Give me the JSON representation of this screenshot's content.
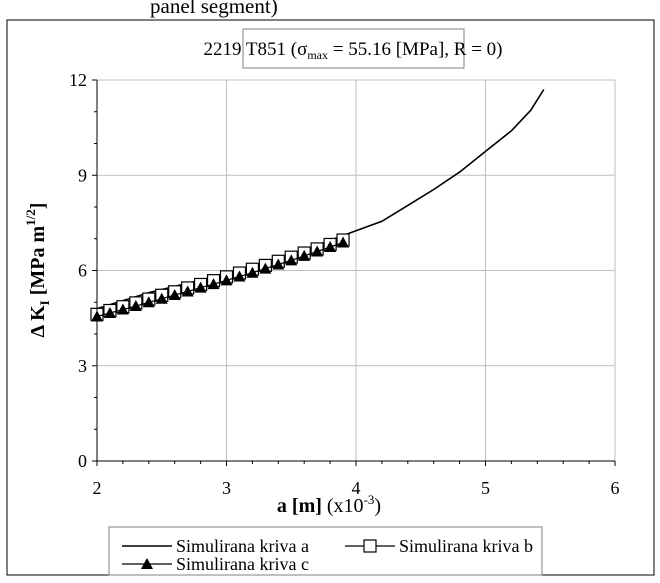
{
  "top_cut_text": "panel segment)",
  "chart_data": {
    "type": "line",
    "title": {
      "prefix": "2219 T851 (",
      "sigma": "σ",
      "sigma_sub": "max",
      "suffix": " = 55.16 [MPa], R = 0)"
    },
    "xlabel": {
      "main": "a [m]",
      "unit_prefix": " (x10",
      "unit_sup": "-3",
      "unit_suffix": ")"
    },
    "ylabel": {
      "delta": "Δ",
      "k": "K",
      "k_sub": "I",
      "mid": " [MPa m",
      "sup": "1/2",
      "end": "]"
    },
    "xlim": [
      2,
      6
    ],
    "ylim": [
      0,
      12
    ],
    "xticks": [
      "2",
      "3",
      "4",
      "5",
      "6"
    ],
    "yticks": [
      "0",
      "3",
      "6",
      "9",
      "12"
    ],
    "grid": true,
    "legend_position": "bottom",
    "series": [
      {
        "name": "Simulirana kriva a",
        "marker": "none",
        "x": [
          2.0,
          2.2,
          2.4,
          2.6,
          2.8,
          3.0,
          3.2,
          3.4,
          3.6,
          3.8,
          4.0,
          4.2,
          4.4,
          4.6,
          4.8,
          5.0,
          5.2,
          5.35,
          5.45
        ],
        "y": [
          4.8,
          5.05,
          5.3,
          5.5,
          5.7,
          5.9,
          6.15,
          6.4,
          6.65,
          6.95,
          7.25,
          7.55,
          8.05,
          8.55,
          9.1,
          9.75,
          10.4,
          11.05,
          11.7
        ]
      },
      {
        "name": "Simulirana kriva b",
        "marker": "square",
        "x": [
          2.0,
          2.1,
          2.2,
          2.3,
          2.4,
          2.5,
          2.6,
          2.7,
          2.8,
          2.9,
          3.0,
          3.1,
          3.2,
          3.3,
          3.4,
          3.5,
          3.6,
          3.7,
          3.8,
          3.9
        ],
        "y": [
          4.62,
          4.74,
          4.86,
          4.98,
          5.1,
          5.22,
          5.33,
          5.45,
          5.56,
          5.68,
          5.8,
          5.92,
          6.04,
          6.16,
          6.29,
          6.42,
          6.55,
          6.68,
          6.82,
          6.96
        ]
      },
      {
        "name": "Simulirana kriva c",
        "marker": "triangle",
        "x": [
          2.0,
          2.1,
          2.2,
          2.3,
          2.4,
          2.5,
          2.6,
          2.7,
          2.8,
          2.9,
          3.0,
          3.1,
          3.2,
          3.3,
          3.4,
          3.5,
          3.6,
          3.7,
          3.8,
          3.9
        ],
        "y": [
          4.55,
          4.66,
          4.77,
          4.88,
          5.0,
          5.11,
          5.23,
          5.34,
          5.46,
          5.57,
          5.69,
          5.81,
          5.93,
          6.06,
          6.19,
          6.32,
          6.46,
          6.6,
          6.74,
          6.88
        ]
      }
    ]
  }
}
